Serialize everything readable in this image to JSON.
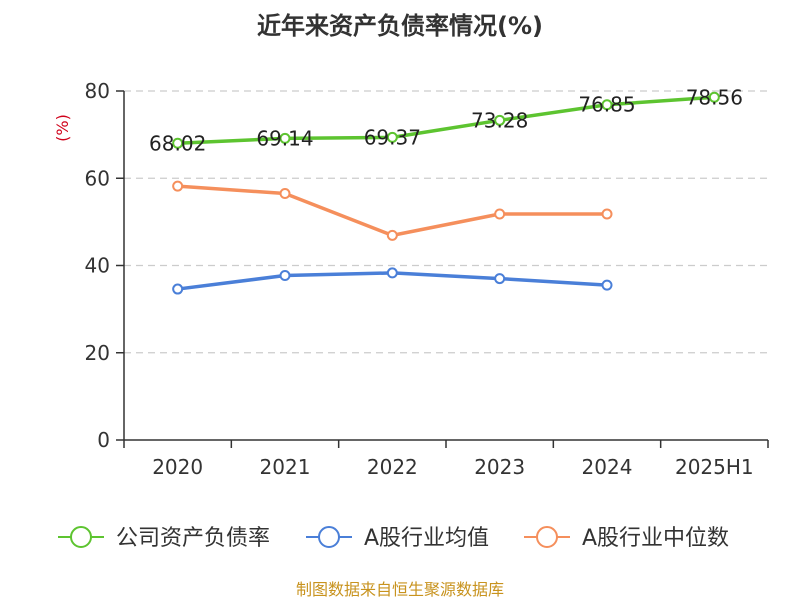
{
  "chart_data": {
    "type": "line",
    "title": "近年来资产负债率情况(%)",
    "ylabel": "(%)",
    "xlabel": "",
    "ylim": [
      0,
      80
    ],
    "yticks": [
      0,
      20,
      40,
      60,
      80
    ],
    "grid": true,
    "legend_position": "bottom",
    "categories": [
      "2020",
      "2021",
      "2022",
      "2023",
      "2024",
      "2025H1"
    ],
    "series": [
      {
        "name": "公司资产负债率",
        "color": "#5dc430",
        "values": [
          68.02,
          69.14,
          69.37,
          73.28,
          76.85,
          78.56
        ],
        "show_labels": true
      },
      {
        "name": "A股行业均值",
        "color": "#4a7fd8",
        "values": [
          34.6,
          37.7,
          38.3,
          37.0,
          35.5,
          null
        ],
        "show_labels": false
      },
      {
        "name": "A股行业中位数",
        "color": "#f58f5c",
        "values": [
          58.2,
          56.5,
          46.9,
          51.8,
          51.8,
          null
        ],
        "show_labels": false
      }
    ],
    "data_labels": [
      "68.02",
      "69.14",
      "69.37",
      "73.28",
      "76.85",
      "78.56"
    ]
  },
  "footer": {
    "source": "制图数据来自恒生聚源数据库"
  }
}
